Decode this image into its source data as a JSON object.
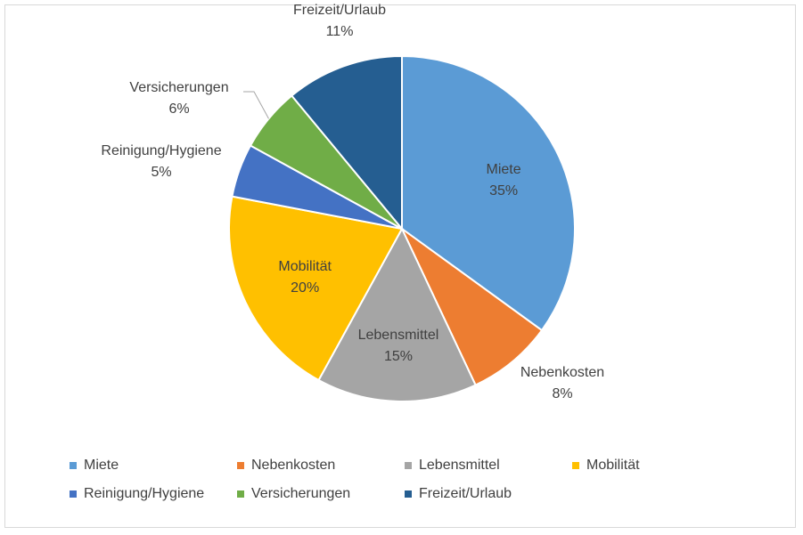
{
  "chart_data": {
    "type": "pie",
    "categories": [
      "Miete",
      "Nebenkosten",
      "Lebensmittel",
      "Mobilität",
      "Reinigung/Hygiene",
      "Versicherungen",
      "Freizeit/Urlaub"
    ],
    "values": [
      35,
      8,
      15,
      20,
      5,
      6,
      11
    ],
    "value_labels": [
      "35%",
      "8%",
      "15%",
      "20%",
      "5%",
      "6%",
      "11%"
    ],
    "colors": [
      "#5b9bd5",
      "#ed7d31",
      "#a5a5a5",
      "#ffc000",
      "#4472c4",
      "#70ad47",
      "#255e91"
    ],
    "legend_position": "bottom",
    "start_angle": "12 o'clock, clockwise"
  }
}
